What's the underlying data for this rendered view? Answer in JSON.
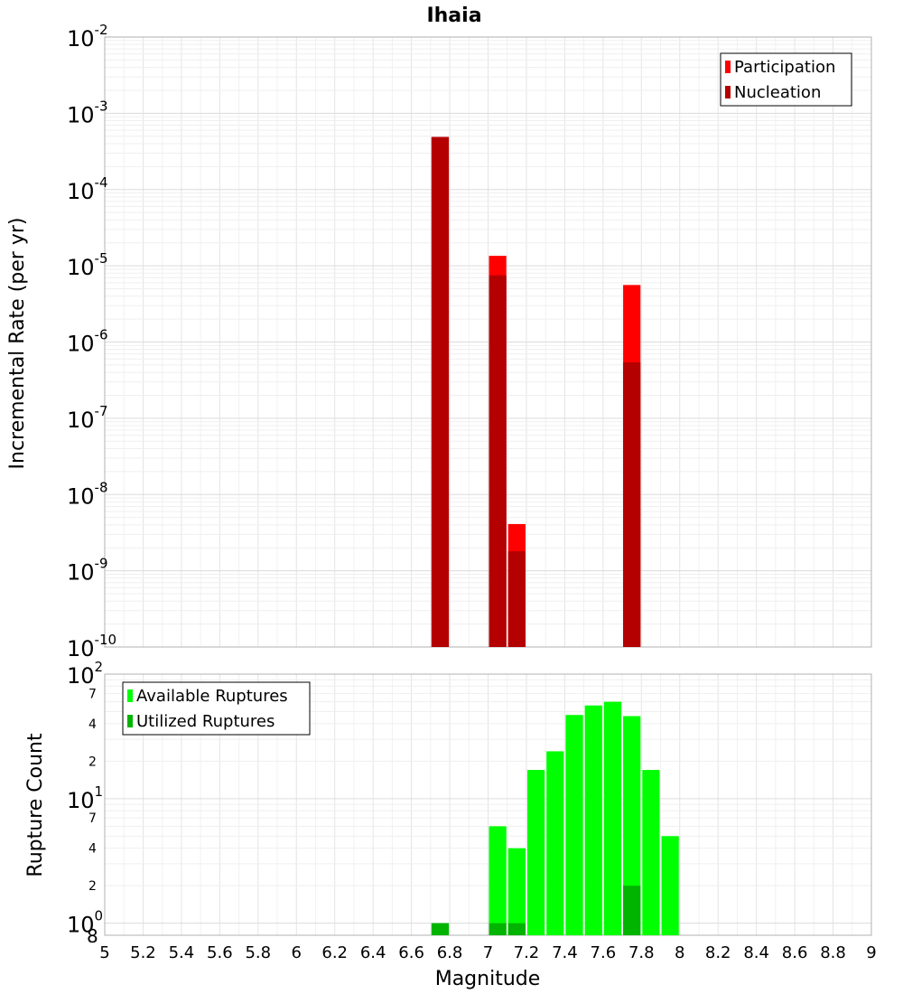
{
  "chart_data": [
    {
      "type": "bar",
      "title": "Ihaia",
      "xlabel": "",
      "ylabel": "Incremental Rate (per yr)",
      "xlim": [
        5,
        9
      ],
      "ylim": [
        1e-10,
        0.01
      ],
      "y_scale": "log",
      "bar_width": 0.1,
      "legend_position": "top-right",
      "y_ticks": [
        {
          "base": "10",
          "exp": "-10"
        },
        {
          "base": "10",
          "exp": "-9"
        },
        {
          "base": "10",
          "exp": "-8"
        },
        {
          "base": "10",
          "exp": "-7"
        },
        {
          "base": "10",
          "exp": "-6"
        },
        {
          "base": "10",
          "exp": "-5"
        },
        {
          "base": "10",
          "exp": "-4"
        },
        {
          "base": "10",
          "exp": "-3"
        },
        {
          "base": "10",
          "exp": "-2"
        }
      ],
      "series": [
        {
          "name": "Participation",
          "color": "#ff0000",
          "x": [
            6.75,
            7.05,
            7.15,
            7.75
          ],
          "values": [
            0.00049,
            1.35e-05,
            4.1e-09,
            5.6e-06
          ]
        },
        {
          "name": "Nucleation",
          "color": "#b40000",
          "x": [
            6.75,
            7.05,
            7.15,
            7.75
          ],
          "values": [
            0.00049,
            7.5e-06,
            1.8e-09,
            5.4e-07
          ]
        }
      ]
    },
    {
      "type": "bar",
      "title": "",
      "xlabel": "Magnitude",
      "ylabel": "Rupture Count",
      "xlim": [
        5,
        9
      ],
      "ylim": [
        0.8,
        100
      ],
      "y_scale": "log",
      "bar_width": 0.1,
      "legend_position": "top-left",
      "x_ticks": [
        "5",
        "5.2",
        "5.4",
        "5.6",
        "5.8",
        "6",
        "6.2",
        "6.4",
        "6.6",
        "6.8",
        "7",
        "7.2",
        "7.4",
        "7.6",
        "7.8",
        "8",
        "8.2",
        "8.4",
        "8.6",
        "8.8",
        "9"
      ],
      "y_major_ticks": [
        {
          "value": 1,
          "base": "10",
          "exp": "0"
        },
        {
          "value": 10,
          "base": "10",
          "exp": "1"
        },
        {
          "value": 100,
          "base": "10",
          "exp": "2"
        }
      ],
      "y_minor_ticks": [
        {
          "value": 0.8,
          "label": "8"
        },
        {
          "value": 2,
          "label": "2"
        },
        {
          "value": 4,
          "label": "4"
        },
        {
          "value": 7,
          "label": "7"
        },
        {
          "value": 20,
          "label": "2"
        },
        {
          "value": 40,
          "label": "4"
        },
        {
          "value": 70,
          "label": "7"
        }
      ],
      "series": [
        {
          "name": "Available Ruptures",
          "color": "#00ff00",
          "x": [
            6.75,
            7.05,
            7.15,
            7.25,
            7.35,
            7.45,
            7.55,
            7.65,
            7.75,
            7.85,
            7.95
          ],
          "values": [
            1,
            6,
            4,
            17,
            24,
            47,
            56,
            60,
            46,
            17,
            5
          ]
        },
        {
          "name": "Utilized Ruptures",
          "color": "#00b400",
          "x": [
            6.75,
            7.05,
            7.15,
            7.75
          ],
          "values": [
            1,
            1,
            1,
            2
          ]
        }
      ]
    }
  ]
}
